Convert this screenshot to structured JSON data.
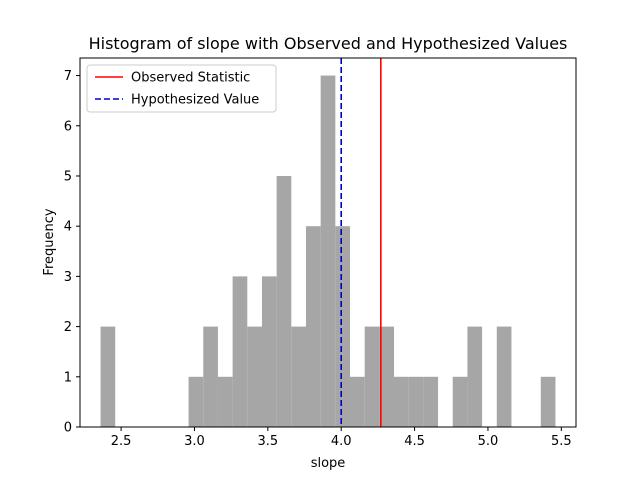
{
  "chart_data": {
    "type": "bar",
    "title": "Histogram of slope with Observed and Hypothesized Values",
    "xlabel": "slope",
    "ylabel": "Frequency",
    "xlim": [
      2.22,
      5.6
    ],
    "ylim": [
      0,
      7.35
    ],
    "xticks": [
      2.5,
      3.0,
      3.5,
      4.0,
      4.5,
      5.0,
      5.5
    ],
    "xtick_labels": [
      "2.5",
      "3.0",
      "3.5",
      "4.0",
      "4.5",
      "5.0",
      "5.5"
    ],
    "yticks": [
      0,
      1,
      2,
      3,
      4,
      5,
      6,
      7
    ],
    "ytick_labels": [
      "0",
      "1",
      "2",
      "3",
      "4",
      "5",
      "6",
      "7"
    ],
    "bar_color": "#a6a6a6",
    "bin_start": 2.36,
    "bin_end": 5.46,
    "counts": [
      2,
      0,
      0,
      0,
      0,
      0,
      1,
      2,
      1,
      3,
      2,
      3,
      5,
      2,
      4,
      7,
      4,
      1,
      2,
      2,
      1,
      1,
      1,
      0,
      1,
      2,
      0,
      2,
      0,
      0,
      1
    ],
    "reference_lines": [
      {
        "name": "Observed Statistic",
        "x": 4.27,
        "color": "#ff0000",
        "style": "solid"
      },
      {
        "name": "Hypothesized Value",
        "x": 4.0,
        "color": "#0000cc",
        "style": "dashed"
      }
    ],
    "legend_position": "upper-left",
    "grid": false
  }
}
